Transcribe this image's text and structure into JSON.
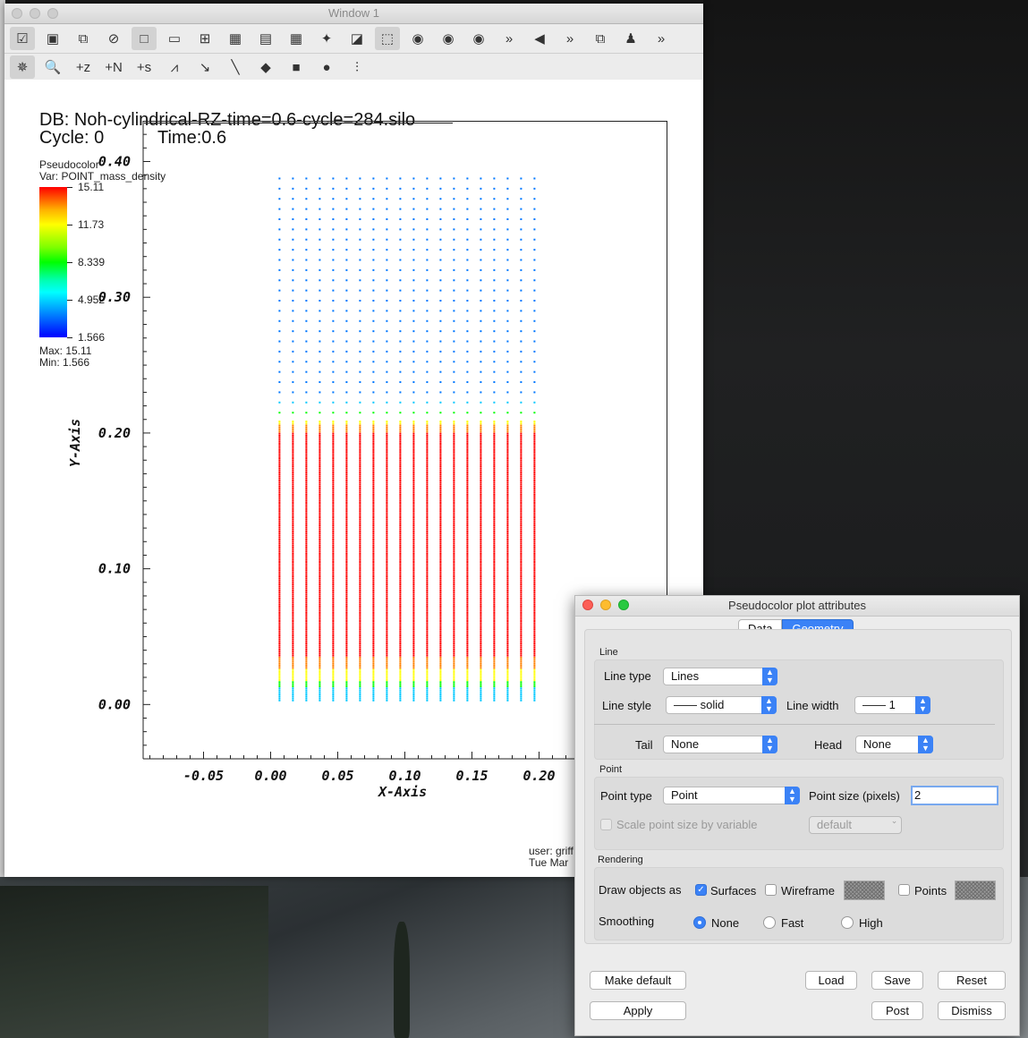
{
  "window1": {
    "title": "Window 1",
    "toolbar_row1": [
      {
        "icon": "checkmark-window-icon",
        "glyph": "☑"
      },
      {
        "icon": "new-window-icon",
        "glyph": "▣"
      },
      {
        "icon": "clone-window-icon",
        "glyph": "⧉"
      },
      {
        "icon": "delete-window-icon",
        "glyph": "⊘"
      },
      {
        "icon": "layout-1x1-icon",
        "glyph": "□"
      },
      {
        "icon": "layout-1x2-icon",
        "glyph": "▭"
      },
      {
        "icon": "layout-2x2-icon",
        "glyph": "⊞"
      },
      {
        "icon": "layout-2x3-icon",
        "glyph": "▦"
      },
      {
        "icon": "layout-2x4-icon",
        "glyph": "▤"
      },
      {
        "icon": "layout-3x3-icon",
        "glyph": "▦"
      },
      {
        "icon": "spin-mode-icon",
        "glyph": "✦"
      },
      {
        "icon": "invert-background-icon",
        "glyph": "◪"
      },
      {
        "icon": "perspective-cube-icon",
        "glyph": "⬚"
      },
      {
        "icon": "camera-green-icon",
        "glyph": "◉"
      },
      {
        "icon": "camera-recenter-icon",
        "glyph": "◉"
      },
      {
        "icon": "camera-undo-icon",
        "glyph": "◉"
      },
      {
        "icon": "more-chevron-icon",
        "glyph": "»"
      },
      {
        "icon": "previous-frame-icon",
        "glyph": "◀"
      },
      {
        "icon": "more-chevron-icon",
        "glyph": "»"
      },
      {
        "icon": "lock-view-icon",
        "glyph": "⧉"
      },
      {
        "icon": "tools-icon",
        "glyph": "♟"
      },
      {
        "icon": "more-chevron-icon",
        "glyph": "»"
      }
    ],
    "toolbar_row2": [
      {
        "icon": "navigate-mode-icon",
        "glyph": "✵"
      },
      {
        "icon": "zoom-mode-icon",
        "glyph": "🔍"
      },
      {
        "icon": "zone-pick-icon",
        "glyph": "+z"
      },
      {
        "icon": "node-pick-icon",
        "glyph": "+N"
      },
      {
        "icon": "spreadsheet-pick-icon",
        "glyph": "+s"
      },
      {
        "icon": "curve-pick-icon",
        "glyph": "⩘"
      },
      {
        "icon": "lineout-icon",
        "glyph": "↘"
      },
      {
        "icon": "line-tool-icon",
        "glyph": "╲"
      },
      {
        "icon": "plane-tool-icon",
        "glyph": "◆"
      },
      {
        "icon": "box-tool-icon",
        "glyph": "■"
      },
      {
        "icon": "sphere-tool-icon",
        "glyph": "●"
      },
      {
        "icon": "axis-restriction-icon",
        "glyph": "⫶"
      }
    ],
    "plot": {
      "db_text": "DB: Noh-cylindrical-RZ-time=0.6-cycle=284.silo",
      "cycle_text": "Cycle: 0",
      "time_text": "Time:0.6",
      "legend_title": "Pseudocolor",
      "legend_var": "Var: POINT_mass_density",
      "legend_ticks": [
        "15.11",
        "11.73",
        "8.339",
        "4.952",
        "1.566"
      ],
      "legend_max": "Max:  15.11",
      "legend_min": "Min:  1.566",
      "y_axis_label": "Y-Axis",
      "x_axis_label": "X-Axis",
      "user_line1": "user: griff",
      "user_line2": "Tue Mar"
    }
  },
  "chart_data": {
    "type": "scatter",
    "title": "DB: Noh-cylindrical-RZ-time=0.6-cycle=284.silo",
    "xlabel": "X-Axis",
    "ylabel": "Y-Axis",
    "x_ticks": [
      "-0.05",
      "0.00",
      "0.05",
      "0.10",
      "0.15",
      "0.20"
    ],
    "y_ticks": [
      "0.00",
      "0.10",
      "0.20",
      "0.30",
      "0.40"
    ],
    "xlim": [
      -0.095,
      0.295
    ],
    "ylim": [
      -0.04,
      0.43
    ],
    "columns_x": [
      0.0066,
      0.0166,
      0.0266,
      0.0366,
      0.0466,
      0.0566,
      0.0666,
      0.0766,
      0.0866,
      0.0966,
      0.1066,
      0.1166,
      0.1266,
      0.1366,
      0.1466,
      0.1566,
      0.1666,
      0.1766,
      0.1866,
      0.1966
    ],
    "y_min": 0.003,
    "y_max": 0.395,
    "dense_top": 0.21,
    "color_scale": {
      "min": 1.566,
      "max": 15.11
    },
    "colors": {
      "low": "#0000ff",
      "cyan": "#00c8ff",
      "green": "#00ff00",
      "yellow": "#ffff00",
      "high": "#ff0000"
    }
  },
  "dialog": {
    "title": "Pseudocolor plot attributes",
    "tabs": [
      "Data",
      "Geometry"
    ],
    "selected_tab": "Geometry",
    "line_group": "Line",
    "line_type_label": "Line type",
    "line_type_value": "Lines",
    "line_style_label": "Line style",
    "line_style_value": "—— solid",
    "line_width_label": "Line width",
    "line_width_value": "—— 1",
    "tail_label": "Tail",
    "tail_value": "None",
    "head_label": "Head",
    "head_value": "None",
    "point_group": "Point",
    "point_type_label": "Point type",
    "point_type_value": "Point",
    "point_size_label": "Point size (pixels)",
    "point_size_value": "2",
    "scale_point_label": "Scale point size by variable",
    "scale_var_value": "default",
    "rendering_group": "Rendering",
    "draw_objects_label": "Draw objects as",
    "surfaces_label": "Surfaces",
    "wireframe_label": "Wireframe",
    "points_label": "Points",
    "smoothing_label": "Smoothing",
    "smooth_none": "None",
    "smooth_fast": "Fast",
    "smooth_high": "High",
    "buttons": {
      "make_default": "Make default",
      "load": "Load",
      "save": "Save",
      "reset": "Reset",
      "apply": "Apply",
      "post": "Post",
      "dismiss": "Dismiss"
    }
  }
}
